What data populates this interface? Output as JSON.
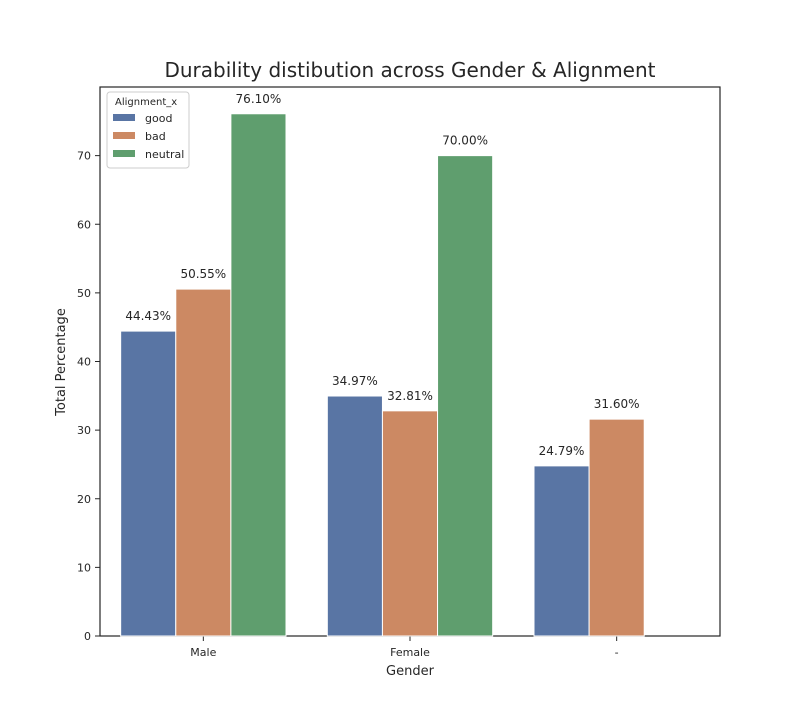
{
  "chart_data": {
    "type": "bar",
    "title": "Durability distibution across Gender & Alignment",
    "xlabel": "Gender",
    "ylabel": "Total Percentage",
    "categories": [
      "Male",
      "Female",
      "-"
    ],
    "series": [
      {
        "name": "good",
        "values": [
          44.43,
          34.97,
          24.79
        ],
        "labels": [
          "44.43%",
          "34.97%",
          "24.79%"
        ],
        "color": "#5975a4"
      },
      {
        "name": "bad",
        "values": [
          50.55,
          32.81,
          31.6
        ],
        "labels": [
          "50.55%",
          "32.81%",
          "31.60%"
        ],
        "color": "#cc8963"
      },
      {
        "name": "neutral",
        "values": [
          76.1,
          70.0,
          null
        ],
        "labels": [
          "76.10%",
          "70.00%",
          null
        ],
        "color": "#5f9e6e"
      }
    ],
    "ylim": [
      0,
      80
    ],
    "yticks": [
      0,
      10,
      20,
      30,
      40,
      50,
      60,
      70
    ],
    "grid": false,
    "legend": {
      "title": "Alignment_x",
      "placement": "top-left"
    }
  }
}
